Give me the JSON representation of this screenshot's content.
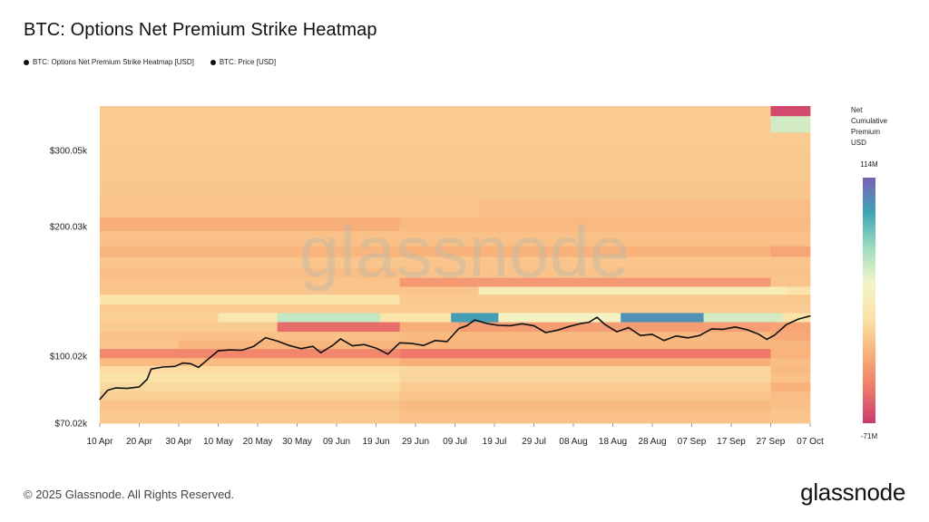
{
  "title": "BTC: Options Net Premium Strike Heatmap",
  "legend": [
    {
      "label": "BTC: Options Net Premium Strike Heatmap [USD]",
      "color": "#111111"
    },
    {
      "label": "BTC: Price [USD]",
      "color": "#111111"
    }
  ],
  "watermark": "glassnode",
  "footer": "© 2025 Glassnode. All Rights Reserved.",
  "brand": "glassnode",
  "colorbar": {
    "title_lines": [
      "Net",
      "Cumulative",
      "Premium",
      "USD"
    ],
    "max_label": "114M",
    "min_label": "-71M",
    "stops": [
      "#7a5fb5",
      "#3fa4b5",
      "#9fdcc0",
      "#f2f5c8",
      "#fbe3a8",
      "#f8b27a",
      "#ef7a6a",
      "#c93a6e"
    ]
  },
  "chart_data": {
    "type": "heatmap",
    "title": "BTC: Options Net Premium Strike Heatmap",
    "y_scale": "log",
    "y_ticks": [
      "$300.05k",
      "$200.03k",
      "$100.02k",
      "$70.02k"
    ],
    "y_tick_values": [
      300050,
      200030,
      100020,
      70020
    ],
    "ylim": [
      70020,
      380000
    ],
    "x_ticks": [
      "10 Apr",
      "20 Apr",
      "30 Apr",
      "10 May",
      "20 May",
      "30 May",
      "09 Jun",
      "19 Jun",
      "29 Jun",
      "09 Jul",
      "19 Jul",
      "29 Jul",
      "08 Aug",
      "18 Aug",
      "28 Aug",
      "07 Sep",
      "17 Sep",
      "27 Sep",
      "07 Oct"
    ],
    "x_start": "2025-04-10",
    "x_end": "2025-10-07",
    "colorbar_range": [
      -71000000,
      114000000
    ],
    "heatmap_rows": [
      {
        "strike_low": 360000,
        "strike_high": 380000,
        "segments": [
          {
            "from": "2025-04-10",
            "to": "2025-09-27",
            "value": -5
          },
          {
            "from": "2025-09-27",
            "to": "2025-10-07",
            "value": -65
          }
        ]
      },
      {
        "strike_low": 330000,
        "strike_high": 360000,
        "segments": [
          {
            "from": "2025-04-10",
            "to": "2025-09-27",
            "value": -4
          },
          {
            "from": "2025-09-27",
            "to": "2025-10-07",
            "value": 45
          }
        ]
      },
      {
        "strike_low": 300000,
        "strike_high": 330000,
        "segments": [
          {
            "from": "2025-04-10",
            "to": "2025-10-07",
            "value": -5
          }
        ]
      },
      {
        "strike_low": 260000,
        "strike_high": 300000,
        "segments": [
          {
            "from": "2025-04-10",
            "to": "2025-10-07",
            "value": -6
          }
        ]
      },
      {
        "strike_low": 230000,
        "strike_high": 260000,
        "segments": [
          {
            "from": "2025-04-10",
            "to": "2025-10-07",
            "value": -7
          }
        ]
      },
      {
        "strike_low": 210000,
        "strike_high": 230000,
        "segments": [
          {
            "from": "2025-04-10",
            "to": "2025-07-15",
            "value": -8
          },
          {
            "from": "2025-07-15",
            "to": "2025-10-07",
            "value": -12
          }
        ]
      },
      {
        "strike_low": 195000,
        "strike_high": 210000,
        "segments": [
          {
            "from": "2025-04-10",
            "to": "2025-06-25",
            "value": -20
          },
          {
            "from": "2025-06-25",
            "to": "2025-10-07",
            "value": -14
          }
        ]
      },
      {
        "strike_low": 180000,
        "strike_high": 195000,
        "segments": [
          {
            "from": "2025-04-10",
            "to": "2025-10-07",
            "value": -10
          }
        ]
      },
      {
        "strike_low": 170000,
        "strike_high": 180000,
        "segments": [
          {
            "from": "2025-04-10",
            "to": "2025-06-25",
            "value": -16
          },
          {
            "from": "2025-06-25",
            "to": "2025-09-27",
            "value": -18
          },
          {
            "from": "2025-09-27",
            "to": "2025-10-07",
            "value": -24
          }
        ]
      },
      {
        "strike_low": 160000,
        "strike_high": 170000,
        "segments": [
          {
            "from": "2025-04-10",
            "to": "2025-10-07",
            "value": -8
          }
        ]
      },
      {
        "strike_low": 152000,
        "strike_high": 160000,
        "segments": [
          {
            "from": "2025-04-10",
            "to": "2025-06-25",
            "value": -12
          },
          {
            "from": "2025-06-25",
            "to": "2025-10-07",
            "value": -9
          }
        ]
      },
      {
        "strike_low": 145000,
        "strike_high": 152000,
        "segments": [
          {
            "from": "2025-04-10",
            "to": "2025-06-25",
            "value": -9
          },
          {
            "from": "2025-06-25",
            "to": "2025-09-27",
            "value": -30
          },
          {
            "from": "2025-09-27",
            "to": "2025-10-07",
            "value": -8
          }
        ]
      },
      {
        "strike_low": 139000,
        "strike_high": 145000,
        "segments": [
          {
            "from": "2025-04-10",
            "to": "2025-07-15",
            "value": -8
          },
          {
            "from": "2025-07-15",
            "to": "2025-10-01",
            "value": 20
          },
          {
            "from": "2025-10-01",
            "to": "2025-10-07",
            "value": 10
          }
        ]
      },
      {
        "strike_low": 132000,
        "strike_high": 139000,
        "segments": [
          {
            "from": "2025-04-10",
            "to": "2025-06-25",
            "value": 10
          },
          {
            "from": "2025-06-25",
            "to": "2025-10-07",
            "value": -6
          }
        ]
      },
      {
        "strike_low": 126000,
        "strike_high": 132000,
        "segments": [
          {
            "from": "2025-04-10",
            "to": "2025-10-07",
            "value": -4
          }
        ]
      },
      {
        "strike_low": 120000,
        "strike_high": 126000,
        "segments": [
          {
            "from": "2025-04-10",
            "to": "2025-05-10",
            "value": -3
          },
          {
            "from": "2025-05-10",
            "to": "2025-05-25",
            "value": 14
          },
          {
            "from": "2025-05-25",
            "to": "2025-06-20",
            "value": 50
          },
          {
            "from": "2025-06-20",
            "to": "2025-07-08",
            "value": 10
          },
          {
            "from": "2025-07-08",
            "to": "2025-07-20",
            "value": 90
          },
          {
            "from": "2025-07-20",
            "to": "2025-08-20",
            "value": 30
          },
          {
            "from": "2025-08-20",
            "to": "2025-09-10",
            "value": 95
          },
          {
            "from": "2025-09-10",
            "to": "2025-09-30",
            "value": 45
          },
          {
            "from": "2025-09-30",
            "to": "2025-10-07",
            "value": 8
          }
        ]
      },
      {
        "strike_low": 114000,
        "strike_high": 120000,
        "segments": [
          {
            "from": "2025-04-10",
            "to": "2025-05-25",
            "value": -5
          },
          {
            "from": "2025-05-25",
            "to": "2025-06-25",
            "value": -50
          },
          {
            "from": "2025-06-25",
            "to": "2025-07-10",
            "value": -20
          },
          {
            "from": "2025-07-10",
            "to": "2025-09-27",
            "value": -28
          },
          {
            "from": "2025-09-27",
            "to": "2025-10-07",
            "value": -25
          }
        ]
      },
      {
        "strike_low": 109000,
        "strike_high": 114000,
        "segments": [
          {
            "from": "2025-04-10",
            "to": "2025-06-25",
            "value": -10
          },
          {
            "from": "2025-06-25",
            "to": "2025-09-27",
            "value": -14
          },
          {
            "from": "2025-09-27",
            "to": "2025-10-07",
            "value": -22
          }
        ]
      },
      {
        "strike_low": 104000,
        "strike_high": 109000,
        "segments": [
          {
            "from": "2025-04-10",
            "to": "2025-04-30",
            "value": -8
          },
          {
            "from": "2025-04-30",
            "to": "2025-10-07",
            "value": -16
          }
        ]
      },
      {
        "strike_low": 99000,
        "strike_high": 104000,
        "segments": [
          {
            "from": "2025-04-10",
            "to": "2025-06-25",
            "value": -38
          },
          {
            "from": "2025-06-25",
            "to": "2025-09-27",
            "value": -45
          },
          {
            "from": "2025-09-27",
            "to": "2025-10-07",
            "value": -18
          }
        ]
      },
      {
        "strike_low": 95000,
        "strike_high": 99000,
        "segments": [
          {
            "from": "2025-04-10",
            "to": "2025-06-25",
            "value": -14
          },
          {
            "from": "2025-06-25",
            "to": "2025-09-27",
            "value": -20
          },
          {
            "from": "2025-09-27",
            "to": "2025-10-07",
            "value": -12
          }
        ]
      },
      {
        "strike_low": 91000,
        "strike_high": 95000,
        "segments": [
          {
            "from": "2025-04-10",
            "to": "2025-06-25",
            "value": 4
          },
          {
            "from": "2025-06-25",
            "to": "2025-09-27",
            "value": 2
          },
          {
            "from": "2025-09-27",
            "to": "2025-10-07",
            "value": -14
          }
        ]
      },
      {
        "strike_low": 87000,
        "strike_high": 91000,
        "segments": [
          {
            "from": "2025-04-10",
            "to": "2025-06-25",
            "value": 8
          },
          {
            "from": "2025-06-25",
            "to": "2025-09-27",
            "value": 1
          },
          {
            "from": "2025-09-27",
            "to": "2025-10-07",
            "value": -10
          }
        ]
      },
      {
        "strike_low": 83000,
        "strike_high": 87000,
        "segments": [
          {
            "from": "2025-04-10",
            "to": "2025-06-25",
            "value": 3
          },
          {
            "from": "2025-06-25",
            "to": "2025-09-27",
            "value": -4
          },
          {
            "from": "2025-09-27",
            "to": "2025-10-07",
            "value": -18
          }
        ]
      },
      {
        "strike_low": 79000,
        "strike_high": 83000,
        "segments": [
          {
            "from": "2025-04-10",
            "to": "2025-06-25",
            "value": -3
          },
          {
            "from": "2025-06-25",
            "to": "2025-09-27",
            "value": -8
          },
          {
            "from": "2025-09-27",
            "to": "2025-10-07",
            "value": -12
          }
        ]
      },
      {
        "strike_low": 75000,
        "strike_high": 79000,
        "segments": [
          {
            "from": "2025-04-10",
            "to": "2025-06-25",
            "value": -9
          },
          {
            "from": "2025-06-25",
            "to": "2025-09-27",
            "value": -14
          },
          {
            "from": "2025-09-27",
            "to": "2025-10-07",
            "value": -10
          }
        ]
      },
      {
        "strike_low": 70020,
        "strike_high": 75000,
        "segments": [
          {
            "from": "2025-04-10",
            "to": "2025-06-25",
            "value": -6
          },
          {
            "from": "2025-06-25",
            "to": "2025-09-27",
            "value": -10
          },
          {
            "from": "2025-09-27",
            "to": "2025-10-07",
            "value": -8
          }
        ]
      }
    ],
    "heatmap_value_units": "M USD",
    "price_series": {
      "name": "BTC: Price [USD]",
      "x": [
        "2025-04-10",
        "2025-04-12",
        "2025-04-14",
        "2025-04-17",
        "2025-04-20",
        "2025-04-22",
        "2025-04-23",
        "2025-04-26",
        "2025-04-29",
        "2025-05-01",
        "2025-05-03",
        "2025-05-05",
        "2025-05-08",
        "2025-05-10",
        "2025-05-13",
        "2025-05-16",
        "2025-05-19",
        "2025-05-22",
        "2025-05-25",
        "2025-05-28",
        "2025-05-31",
        "2025-06-03",
        "2025-06-05",
        "2025-06-08",
        "2025-06-10",
        "2025-06-13",
        "2025-06-16",
        "2025-06-19",
        "2025-06-22",
        "2025-06-25",
        "2025-06-28",
        "2025-07-01",
        "2025-07-04",
        "2025-07-07",
        "2025-07-10",
        "2025-07-12",
        "2025-07-14",
        "2025-07-17",
        "2025-07-20",
        "2025-07-23",
        "2025-07-26",
        "2025-07-29",
        "2025-08-01",
        "2025-08-04",
        "2025-08-07",
        "2025-08-10",
        "2025-08-12",
        "2025-08-14",
        "2025-08-16",
        "2025-08-19",
        "2025-08-22",
        "2025-08-25",
        "2025-08-28",
        "2025-08-31",
        "2025-09-03",
        "2025-09-06",
        "2025-09-09",
        "2025-09-12",
        "2025-09-15",
        "2025-09-18",
        "2025-09-21",
        "2025-09-24",
        "2025-09-26",
        "2025-09-28",
        "2025-10-01",
        "2025-10-04",
        "2025-10-07"
      ],
      "y": [
        79500,
        83500,
        84500,
        84300,
        85000,
        88500,
        93500,
        94500,
        94800,
        96500,
        96200,
        94300,
        99500,
        103000,
        103500,
        103300,
        105500,
        110500,
        108500,
        106000,
        104200,
        105500,
        102000,
        106000,
        109800,
        105800,
        106500,
        104500,
        101200,
        107500,
        107200,
        106000,
        108800,
        108200,
        116000,
        117800,
        121500,
        119200,
        118000,
        117800,
        119000,
        117800,
        113500,
        115000,
        117300,
        119200,
        120000,
        123200,
        118500,
        114000,
        116600,
        111800,
        112500,
        108800,
        111500,
        110400,
        111800,
        115800,
        115500,
        117000,
        115300,
        112500,
        109500,
        112000,
        118500,
        122000,
        124000
      ]
    }
  }
}
